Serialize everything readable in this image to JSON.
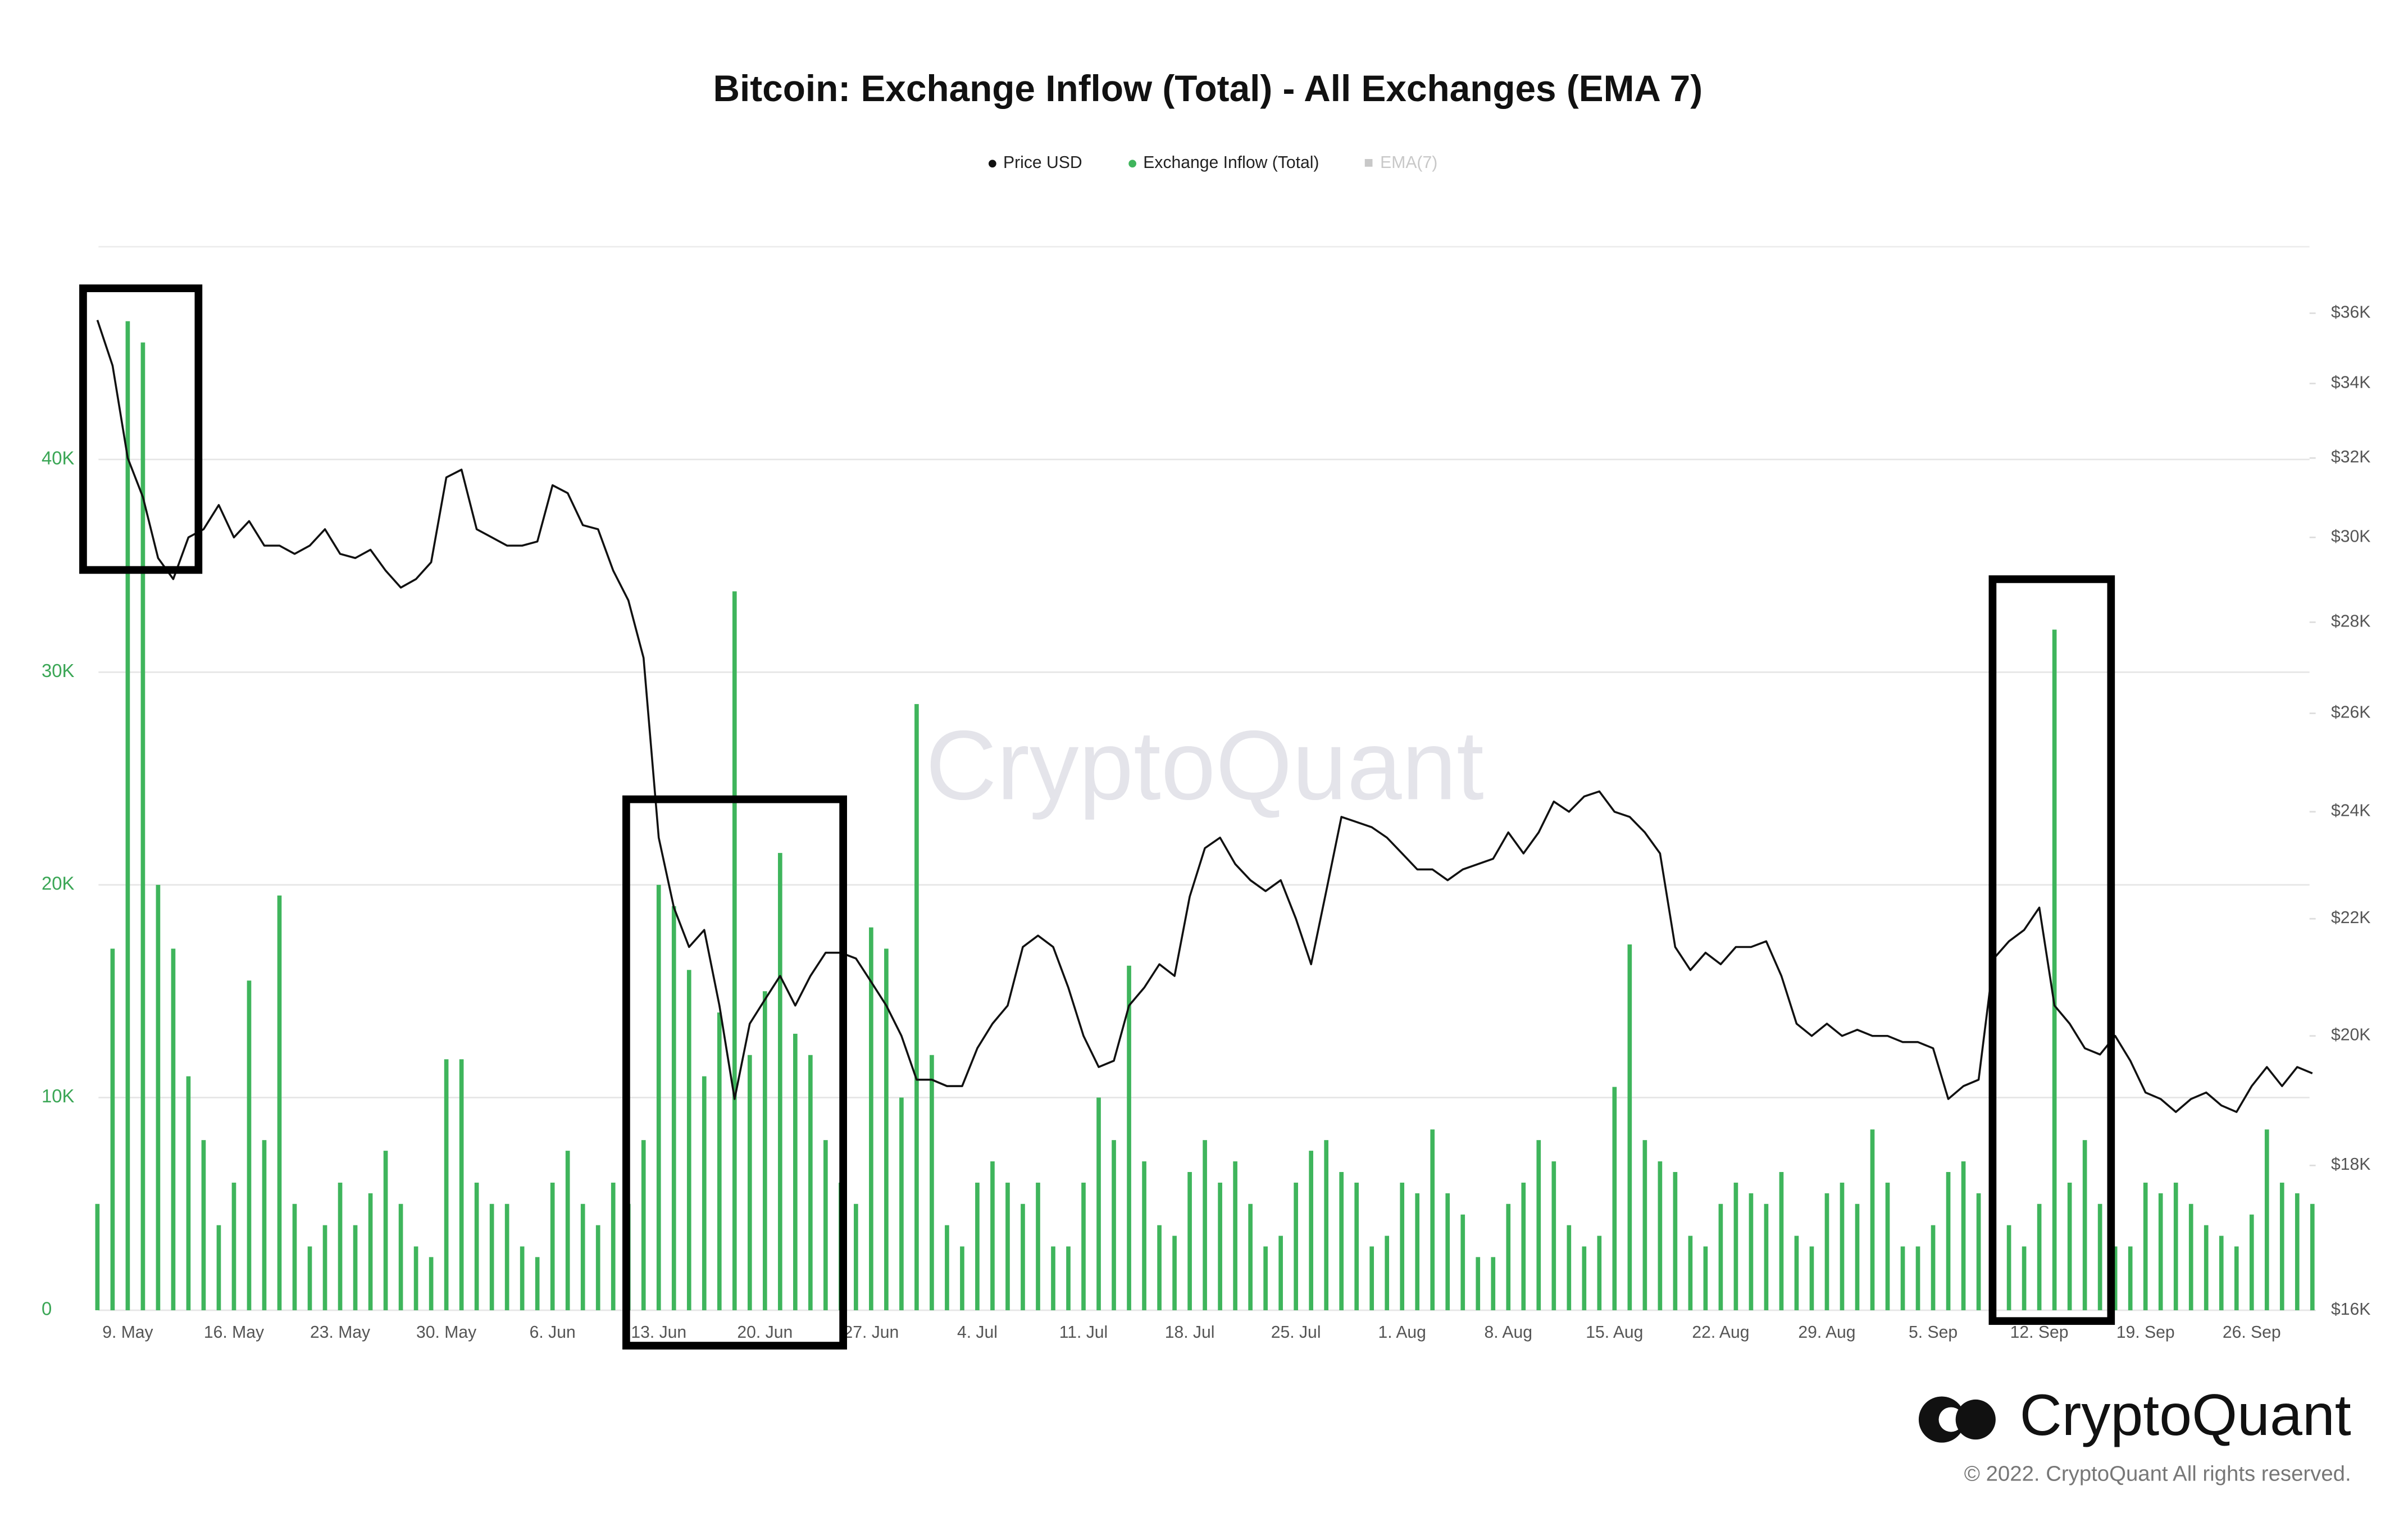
{
  "chart_data": {
    "type": "bar_line",
    "title": "Bitcoin: Exchange Inflow (Total) - All Exchanges (EMA 7)",
    "watermark": "CryptoQuant",
    "brand": "CryptoQuant",
    "copyright": "© 2022. CryptoQuant All rights reserved.",
    "categories": [
      null,
      null,
      "9. May",
      null,
      null,
      null,
      null,
      null,
      null,
      "16. May",
      null,
      null,
      null,
      null,
      null,
      null,
      "23. May",
      null,
      null,
      null,
      null,
      null,
      null,
      "30. May",
      null,
      null,
      null,
      null,
      null,
      null,
      "6. Jun",
      null,
      null,
      null,
      null,
      null,
      null,
      "13. Jun",
      null,
      null,
      null,
      null,
      null,
      null,
      "20. Jun",
      null,
      null,
      null,
      null,
      null,
      null,
      "27. Jun",
      null,
      null,
      null,
      null,
      null,
      null,
      "4. Jul",
      null,
      null,
      null,
      null,
      null,
      null,
      "11. Jul",
      null,
      null,
      null,
      null,
      null,
      null,
      "18. Jul",
      null,
      null,
      null,
      null,
      null,
      null,
      "25. Jul",
      null,
      null,
      null,
      null,
      null,
      null,
      "1. Aug",
      null,
      null,
      null,
      null,
      null,
      null,
      "8. Aug",
      null,
      null,
      null,
      null,
      null,
      null,
      "15. Aug",
      null,
      null,
      null,
      null,
      null,
      null,
      "22. Aug",
      null,
      null,
      null,
      null,
      null,
      null,
      "29. Aug",
      null,
      null,
      null,
      null,
      null,
      null,
      "5. Sep",
      null,
      null,
      null,
      null,
      null,
      null,
      "12. Sep",
      null,
      null,
      null,
      null,
      null,
      null,
      "19. Sep",
      null,
      null,
      null,
      null,
      null,
      null,
      "26. Sep",
      null,
      null,
      null,
      null
    ],
    "series": [
      {
        "name": "Price USD",
        "type": "line",
        "axis": "y2",
        "color": "#111111",
        "values": [
          35800,
          34500,
          32000,
          31000,
          29500,
          29000,
          30000,
          30200,
          30800,
          30000,
          30400,
          29800,
          29800,
          29600,
          29800,
          30200,
          29600,
          29500,
          29700,
          29200,
          28800,
          29000,
          29400,
          31500,
          31700,
          30200,
          30000,
          29800,
          29800,
          29900,
          31300,
          31100,
          30300,
          30200,
          29200,
          28500,
          27200,
          23500,
          22200,
          21500,
          21800,
          20500,
          19000,
          20200,
          20600,
          21000,
          20500,
          21000,
          21400,
          21400,
          21300,
          20900,
          20500,
          20000,
          19300,
          19300,
          19200,
          19200,
          19800,
          20200,
          20500,
          21500,
          21700,
          21500,
          20800,
          20000,
          19500,
          19600,
          20500,
          20800,
          21200,
          21000,
          22400,
          23300,
          23500,
          23000,
          22700,
          22500,
          22700,
          22000,
          21200,
          22500,
          23900,
          23800,
          23700,
          23500,
          23200,
          22900,
          22900,
          22700,
          22900,
          23000,
          23100,
          23600,
          23200,
          23600,
          24200,
          24000,
          24300,
          24400,
          24000,
          23900,
          23600,
          23200,
          21500,
          21100,
          21400,
          21200,
          21500,
          21500,
          21600,
          21000,
          20200,
          20000,
          20200,
          20000,
          20100,
          20000,
          20000,
          19900,
          19900,
          19800,
          19000,
          19200,
          19300,
          21300,
          21600,
          21800,
          22200,
          20500,
          20200,
          19800,
          19700,
          20000,
          19600,
          19100,
          19000,
          18800,
          19000,
          19100,
          18900,
          18800,
          19200,
          19500,
          19200,
          19500,
          19400
        ]
      },
      {
        "name": "Exchange Inflow (Total)",
        "type": "bar",
        "color": "#3fb55c",
        "values": [
          5000,
          17000,
          46500,
          45500,
          20000,
          17000,
          11000,
          8000,
          4000,
          6000,
          15500,
          8000,
          19500,
          5000,
          3000,
          4000,
          6000,
          4000,
          5500,
          7500,
          5000,
          3000,
          2500,
          11800,
          11800,
          6000,
          5000,
          5000,
          3000,
          2500,
          6000,
          7500,
          5000,
          4000,
          6000,
          5000,
          8000,
          20000,
          19000,
          16000,
          11000,
          14000,
          33800,
          12000,
          15000,
          21500,
          13000,
          12000,
          8000,
          6000,
          5000,
          18000,
          17000,
          10000,
          28500,
          12000,
          4000,
          3000,
          6000,
          7000,
          6000,
          5000,
          6000,
          3000,
          3000,
          6000,
          10000,
          8000,
          16200,
          7000,
          4000,
          3500,
          6500,
          8000,
          6000,
          7000,
          5000,
          3000,
          3500,
          6000,
          7500,
          8000,
          6500,
          6000,
          3000,
          3500,
          6000,
          5500,
          8500,
          5500,
          4500,
          2500,
          2500,
          5000,
          6000,
          8000,
          7000,
          4000,
          3000,
          3500,
          10500,
          17200,
          8000,
          7000,
          6500,
          3500,
          3000,
          5000,
          6000,
          5500,
          5000,
          6500,
          3500,
          3000,
          5500,
          6000,
          5000,
          8500,
          6000,
          3000,
          3000,
          4000,
          6500,
          7000,
          5500,
          6500,
          4000,
          3000,
          5000,
          32000,
          6000,
          8000,
          5000,
          3000,
          3000,
          6000,
          5500,
          6000,
          5000,
          4000,
          3500,
          3000,
          4500,
          8500,
          6000,
          5500,
          5000
        ]
      },
      {
        "name": "EMA(7)",
        "color": "#c8c8c8",
        "hidden": true
      }
    ],
    "ylim": [
      0,
      50000
    ],
    "yticks": [
      0,
      {
        "value": 10000,
        "label": "10K"
      },
      {
        "value": 20000,
        "label": "20K"
      },
      {
        "value": 30000,
        "label": "30K"
      },
      {
        "value": 40000,
        "label": "40K"
      }
    ],
    "y2lim": [
      16000,
      38000
    ],
    "y2_log": true,
    "y2ticks": [
      {
        "value": 16000,
        "label": "$16K"
      },
      {
        "value": 18000,
        "label": "$18K"
      },
      {
        "value": 20000,
        "label": "$20K"
      },
      {
        "value": 22000,
        "label": "$22K"
      },
      {
        "value": 24000,
        "label": "$24K"
      },
      {
        "value": 26000,
        "label": "$26K"
      },
      {
        "value": 28000,
        "label": "$28K"
      },
      {
        "value": 30000,
        "label": "$30K"
      },
      {
        "value": 32000,
        "label": "$32K"
      },
      {
        "value": 34000,
        "label": "$34K"
      },
      {
        "value": 36000,
        "label": "$36K"
      }
    ],
    "grid": true,
    "legend": "top"
  }
}
